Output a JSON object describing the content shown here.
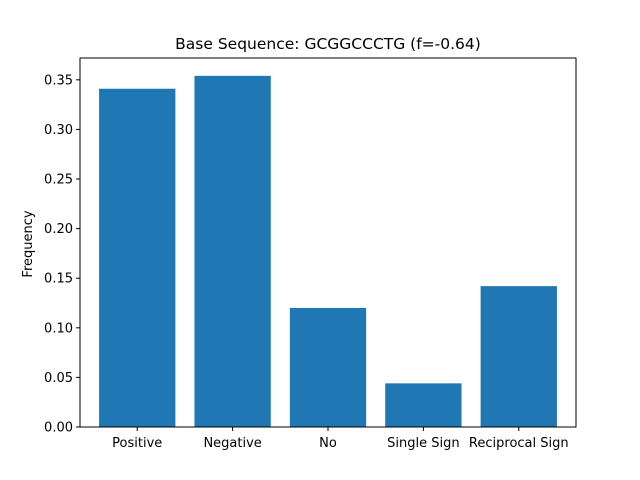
{
  "chart_data": {
    "type": "bar",
    "title": "Base Sequence: GCGGCCCTG (f=-0.64)",
    "xlabel": "",
    "ylabel": "Frequency",
    "categories": [
      "Positive",
      "Negative",
      "No",
      "Single Sign",
      "Reciprocal Sign"
    ],
    "values": [
      0.341,
      0.354,
      0.12,
      0.044,
      0.142
    ],
    "ylim": [
      0,
      0.372
    ],
    "yticks": [
      0.0,
      0.05,
      0.1,
      0.15,
      0.2,
      0.25,
      0.3,
      0.35
    ],
    "ytick_labels": [
      "0.00",
      "0.05",
      "0.10",
      "0.15",
      "0.20",
      "0.25",
      "0.30",
      "0.35"
    ],
    "bar_color": "#1f77b4",
    "grid": false
  }
}
